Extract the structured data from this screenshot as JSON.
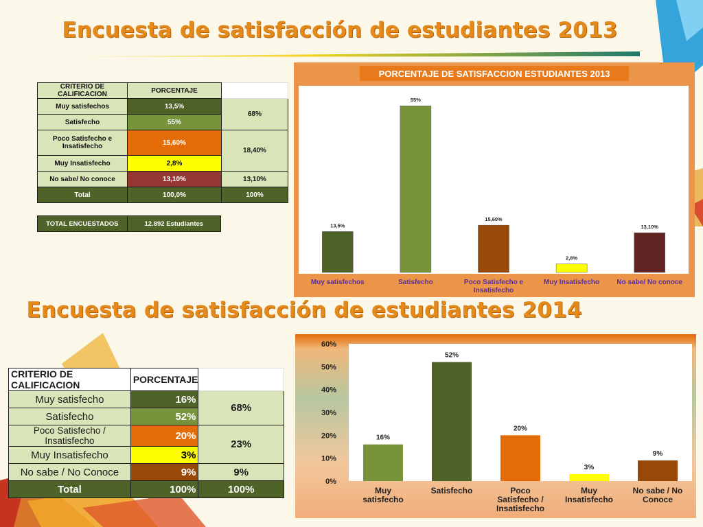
{
  "slide": {
    "title_2013": "Encuesta de satisfacción de estudiantes 2013",
    "title_2014": "Encuesta de satisfacción de estudiantes 2014"
  },
  "colors": {
    "title": "#e48a1c",
    "dark_green": "#4f6228",
    "mid_green": "#77933c",
    "orange": "#e36c09",
    "yellow": "#ffff00",
    "dark_red": "#953735",
    "brown": "#984807",
    "light_green": "#d9e4b8",
    "chart_frame_2013": "#ec9448"
  },
  "table_2013": {
    "header_criterio": "CRITERIO DE CALIFICACION",
    "header_porcentaje": "PORCENTAJE",
    "rows": [
      {
        "criterio": "Muy satisfechos",
        "porcentaje": "13,5%"
      },
      {
        "criterio": "Satisfecho",
        "porcentaje": "55%"
      },
      {
        "criterio": "Poco Satisfecho e Insatisfecho",
        "porcentaje": "15,60%"
      },
      {
        "criterio": "Muy Insatisfecho",
        "porcentaje": "2,8%"
      },
      {
        "criterio": "No sabe/ No conoce",
        "porcentaje": "13,10%"
      },
      {
        "criterio": "Total",
        "porcentaje": "100,0%"
      }
    ],
    "grupos": [
      "68%",
      "18,40%",
      "13,10%",
      "100%"
    ],
    "total_label": "TOTAL ENCUESTADOS",
    "total_value": "12.892 Estudiantes"
  },
  "table_2014": {
    "header_criterio": "CRITERIO DE CALIFICACION",
    "header_porcentaje": "PORCENTAJE",
    "rows": [
      {
        "criterio": "Muy satisfecho",
        "porcentaje": "16%"
      },
      {
        "criterio": "Satisfecho",
        "porcentaje": "52%"
      },
      {
        "criterio": "Poco Satisfecho / Insatisfecho",
        "porcentaje": "20%"
      },
      {
        "criterio": "Muy Insatisfecho",
        "porcentaje": "3%"
      },
      {
        "criterio": "No sabe / No Conoce",
        "porcentaje": "9%"
      },
      {
        "criterio": "Total",
        "porcentaje": "100%"
      }
    ],
    "grupos": [
      "68%",
      "23%",
      "9%",
      "100%"
    ]
  },
  "chart_data": [
    {
      "type": "bar",
      "title": "PORCENTAJE DE SATISFACCION ESTUDIANTES 2013",
      "categories": [
        "Muy satisfechos",
        "Satisfecho",
        "Poco Satisfecho e Insatisfecho",
        "Muy Insatisfecho",
        "No sabe/ No conoce"
      ],
      "values": [
        13.5,
        55,
        15.6,
        2.8,
        13.1
      ],
      "data_labels": [
        "13,5%",
        "55%",
        "15,60%",
        "2,8%",
        "13,10%"
      ],
      "bar_colors": [
        "#4f6228",
        "#77933c",
        "#984807",
        "#ffff00",
        "#632523"
      ],
      "ylim": [
        0,
        58
      ],
      "grid": false,
      "legend": "none"
    },
    {
      "type": "bar",
      "title": "",
      "categories": [
        "Muy satisfecho",
        "Satisfecho",
        "Poco Satisfecho / Insatisfecho",
        "Muy Insatisfecho",
        "No sabe / No Conoce"
      ],
      "values": [
        16,
        52,
        20,
        3,
        9
      ],
      "data_labels": [
        "16%",
        "52%",
        "20%",
        "3%",
        "9%"
      ],
      "bar_colors": [
        "#77933c",
        "#4f6228",
        "#e36c09",
        "#ffff00",
        "#984807"
      ],
      "yticks": [
        "0%",
        "10%",
        "20%",
        "30%",
        "40%",
        "50%",
        "60%"
      ],
      "ylim": [
        0,
        60
      ],
      "grid": false,
      "legend": "none"
    }
  ]
}
